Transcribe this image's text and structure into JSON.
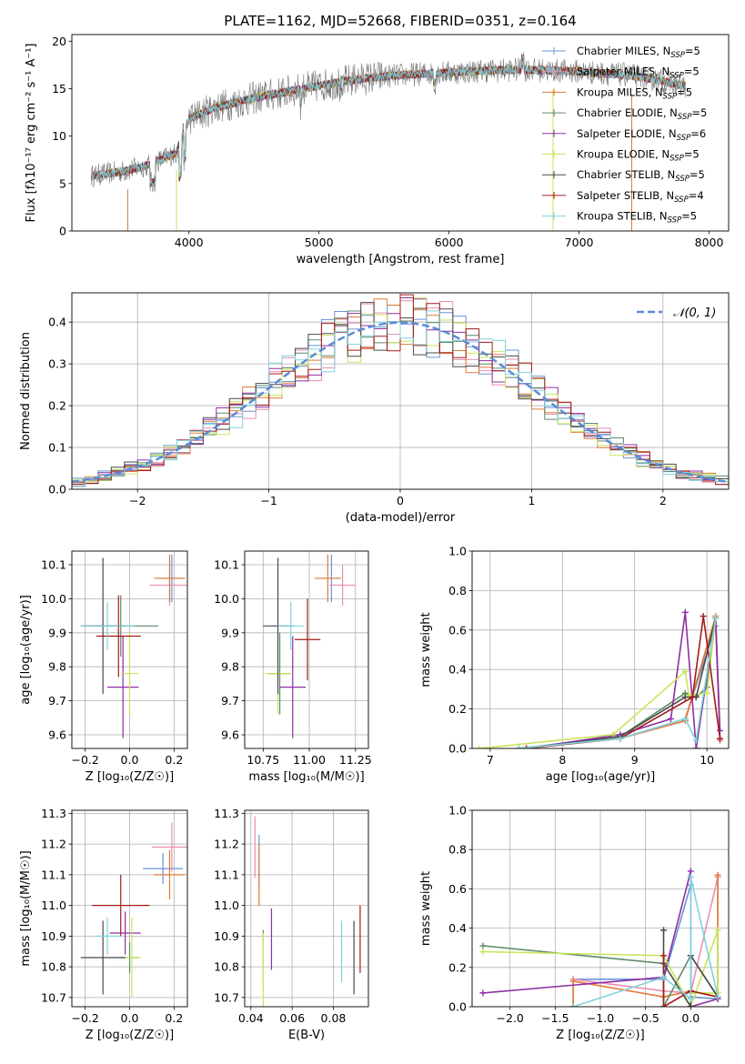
{
  "chart_data": [
    {
      "id": "spectrum",
      "type": "line",
      "title": "PLATE=1162, MJD=52668, FIBERID=0351, z=0.164",
      "xlabel": "wavelength [Angstrom, rest frame]",
      "ylabel": "Flux [fλ10⁻¹⁷ erg cm⁻² s⁻¹ A⁻¹]",
      "xlim": [
        3100,
        8150
      ],
      "ylim": [
        0,
        20.7
      ],
      "xticks": [
        4000,
        5000,
        6000,
        7000,
        8000
      ],
      "yticks": [
        0,
        5,
        10,
        15,
        20
      ],
      "grid": false,
      "legend_position": "right",
      "series": [
        {
          "name": "Chabrier MILES, N",
          "sub": "SSP",
          "suffix": "=5",
          "color": "#6a93d6"
        },
        {
          "name": "Salpeter MILES, N",
          "sub": "SSP",
          "suffix": "=5",
          "color": "#e98fb0"
        },
        {
          "name": "Kroupa MILES, N",
          "sub": "SSP",
          "suffix": "=5",
          "color": "#e07a36"
        },
        {
          "name": "Chabrier ELODIE, N",
          "sub": "SSP",
          "suffix": "=5",
          "color": "#5d8a6a"
        },
        {
          "name": "Salpeter ELODIE, N",
          "sub": "SSP",
          "suffix": "=6",
          "color": "#8e2fa3"
        },
        {
          "name": "Kroupa ELODIE, N",
          "sub": "SSP",
          "suffix": "=5",
          "color": "#c9e55a"
        },
        {
          "name": "Chabrier STELIB, N",
          "sub": "SSP",
          "suffix": "=5",
          "color": "#4a4a4a"
        },
        {
          "name": "Salpeter STELIB, N",
          "sub": "SSP",
          "suffix": "=4",
          "color": "#a41a1a"
        },
        {
          "name": "Kroupa STELIB, N",
          "sub": "SSP",
          "suffix": "=5",
          "color": "#7fd3dc"
        }
      ],
      "continuum": {
        "x": [
          3250,
          3500,
          3700,
          3900,
          4000,
          4200,
          4500,
          4800,
          5000,
          5300,
          5600,
          6000,
          6300,
          6600,
          7000,
          7400,
          7600,
          7800
        ],
        "y": [
          5.8,
          6.3,
          7.0,
          8.2,
          11.8,
          13.0,
          14.0,
          14.8,
          15.3,
          16.0,
          16.4,
          16.7,
          16.9,
          17.0,
          16.8,
          16.4,
          15.9,
          15.3
        ]
      },
      "data_series": {
        "name": "data",
        "color": "#7a7a7a"
      }
    },
    {
      "id": "residuals",
      "type": "line",
      "xlabel": "(data-model)/error",
      "ylabel": "Normed distribution",
      "xlim": [
        -2.5,
        2.5
      ],
      "ylim": [
        0,
        0.47
      ],
      "xticks": [
        -2,
        -1,
        0,
        1,
        2
      ],
      "yticks": [
        0.0,
        0.1,
        0.2,
        0.3,
        0.4
      ],
      "grid": true,
      "legend_position": "top-right",
      "reference": {
        "label": "𝒩(0, 1)",
        "mean": 0,
        "sigma": 1,
        "color": "#5b8bd6"
      },
      "histogram_bin_width": 0.1
    },
    {
      "id": "age-vs-Z",
      "type": "scatter",
      "xlabel": "Z [log₁₀(Z/Z☉)]",
      "ylabel": "age  [log₁₀(age/yr)]",
      "xlim": [
        -0.26,
        0.26
      ],
      "ylim": [
        9.56,
        10.14
      ],
      "xticks": [
        -0.2,
        0.0,
        0.2
      ],
      "yticks": [
        9.6,
        9.7,
        9.8,
        9.9,
        10.0,
        10.1
      ],
      "grid": true,
      "points": [
        {
          "x": 0.19,
          "y": 10.06,
          "xerr": 0.06,
          "yerr": 0.07,
          "color": "#6a93d6"
        },
        {
          "x": 0.18,
          "y": 10.04,
          "xerr": 0.09,
          "yerr": 0.06,
          "color": "#e98fb0"
        },
        {
          "x": 0.18,
          "y": 10.06,
          "xerr": 0.07,
          "yerr": 0.07,
          "color": "#e07a36"
        },
        {
          "x": -0.04,
          "y": 9.92,
          "xerr": 0.17,
          "yerr": 0.09,
          "color": "#5d8a6a"
        },
        {
          "x": -0.03,
          "y": 9.74,
          "xerr": 0.07,
          "yerr": 0.15,
          "color": "#8e2fa3"
        },
        {
          "x": 0.0,
          "y": 9.78,
          "xerr": 0.04,
          "yerr": 0.12,
          "color": "#c9e55a"
        },
        {
          "x": -0.12,
          "y": 9.92,
          "xerr": 0.1,
          "yerr": 0.2,
          "color": "#4a4a4a"
        },
        {
          "x": -0.05,
          "y": 9.89,
          "xerr": 0.1,
          "yerr": 0.12,
          "color": "#a41a1a"
        },
        {
          "x": -0.1,
          "y": 9.92,
          "xerr": 0.12,
          "yerr": 0.07,
          "color": "#7fd3dc"
        }
      ]
    },
    {
      "id": "age-vs-mass",
      "type": "scatter",
      "xlabel": "mass [log₁₀(M/M☉)]",
      "ylabel": "",
      "xlim": [
        10.65,
        11.32
      ],
      "ylim": [
        9.56,
        10.14
      ],
      "xticks": [
        10.75,
        11.0,
        11.25
      ],
      "yticks": [
        9.6,
        9.7,
        9.8,
        9.9,
        10.0,
        10.1
      ],
      "grid": true,
      "points": [
        {
          "x": 11.12,
          "y": 10.06,
          "xerr": 0.05,
          "yerr": 0.07,
          "color": "#6a93d6"
        },
        {
          "x": 11.18,
          "y": 10.04,
          "xerr": 0.07,
          "yerr": 0.06,
          "color": "#e98fb0"
        },
        {
          "x": 11.1,
          "y": 10.06,
          "xerr": 0.07,
          "yerr": 0.07,
          "color": "#e07a36"
        },
        {
          "x": 10.84,
          "y": 9.78,
          "xerr": 0.06,
          "yerr": 0.12,
          "color": "#5d8a6a"
        },
        {
          "x": 10.91,
          "y": 9.74,
          "xerr": 0.07,
          "yerr": 0.15,
          "color": "#8e2fa3"
        },
        {
          "x": 10.83,
          "y": 9.78,
          "xerr": 0.07,
          "yerr": 0.12,
          "color": "#c9e55a"
        },
        {
          "x": 10.83,
          "y": 9.92,
          "xerr": 0.08,
          "yerr": 0.2,
          "color": "#4a4a4a"
        },
        {
          "x": 10.99,
          "y": 9.88,
          "xerr": 0.07,
          "yerr": 0.12,
          "color": "#a41a1a"
        },
        {
          "x": 10.9,
          "y": 9.92,
          "xerr": 0.07,
          "yerr": 0.07,
          "color": "#7fd3dc"
        }
      ]
    },
    {
      "id": "weight-vs-age",
      "type": "line",
      "xlabel": "age  [log₁₀(age/yr)]",
      "ylabel": "mass weight",
      "xlim": [
        6.75,
        10.3
      ],
      "ylim": [
        0,
        1
      ],
      "xticks": [
        7,
        8,
        9,
        10
      ],
      "yticks": [
        0.0,
        0.2,
        0.4,
        0.6,
        0.8,
        1.0
      ],
      "grid": true,
      "series": [
        {
          "color": "#6a93d6",
          "points": [
            [
              7.4,
              0.0
            ],
            [
              8.8,
              0.05
            ],
            [
              9.7,
              0.15
            ],
            [
              10.12,
              0.62
            ],
            [
              10.18,
              0.04
            ]
          ]
        },
        {
          "color": "#e98fb0",
          "points": [
            [
              7.4,
              0.0
            ],
            [
              8.8,
              0.05
            ],
            [
              9.7,
              0.15
            ],
            [
              10.12,
              0.66
            ],
            [
              10.18,
              0.04
            ]
          ]
        },
        {
          "color": "#e07a36",
          "points": [
            [
              7.4,
              0.0
            ],
            [
              8.8,
              0.05
            ],
            [
              9.7,
              0.14
            ],
            [
              10.12,
              0.67
            ],
            [
              10.18,
              0.05
            ]
          ]
        },
        {
          "color": "#5d8a6a",
          "points": [
            [
              7.4,
              0.0
            ],
            [
              8.8,
              0.06
            ],
            [
              9.7,
              0.28
            ],
            [
              9.85,
              0.26
            ],
            [
              10.0,
              0.31
            ],
            [
              10.12,
              0.66
            ]
          ]
        },
        {
          "color": "#8e2fa3",
          "points": [
            [
              7.5,
              0.0
            ],
            [
              8.8,
              0.07
            ],
            [
              9.5,
              0.15
            ],
            [
              9.7,
              0.69
            ],
            [
              9.85,
              0.0
            ],
            [
              10.12,
              0.66
            ],
            [
              10.18,
              0.09
            ]
          ]
        },
        {
          "color": "#c9e55a",
          "points": [
            [
              6.85,
              0.0
            ],
            [
              8.7,
              0.07
            ],
            [
              9.7,
              0.39
            ],
            [
              9.75,
              0.27
            ],
            [
              10.0,
              0.28
            ],
            [
              10.12,
              0.66
            ]
          ]
        },
        {
          "color": "#4a4a4a",
          "points": [
            [
              7.5,
              0.0
            ],
            [
              8.8,
              0.06
            ],
            [
              9.7,
              0.26
            ],
            [
              9.85,
              0.26
            ],
            [
              10.12,
              0.66
            ]
          ]
        },
        {
          "color": "#a41a1a",
          "points": [
            [
              7.5,
              0.0
            ],
            [
              8.8,
              0.05
            ],
            [
              9.8,
              0.26
            ],
            [
              9.95,
              0.67
            ],
            [
              10.18,
              0.05
            ]
          ]
        },
        {
          "color": "#7fd3dc",
          "points": [
            [
              7.4,
              0.0
            ],
            [
              8.8,
              0.05
            ],
            [
              9.7,
              0.15
            ],
            [
              9.85,
              0.04
            ],
            [
              10.12,
              0.66
            ]
          ]
        }
      ]
    },
    {
      "id": "mass-vs-Z",
      "type": "scatter",
      "xlabel": "Z [log₁₀(Z/Z☉)]",
      "ylabel": "mass [log₁₀(M/M☉)]",
      "xlim": [
        -0.26,
        0.26
      ],
      "ylim": [
        10.67,
        11.31
      ],
      "xticks": [
        -0.2,
        0.0,
        0.2
      ],
      "yticks": [
        10.7,
        10.8,
        10.9,
        11.0,
        11.1,
        11.2,
        11.3
      ],
      "grid": true,
      "points": [
        {
          "x": 0.15,
          "y": 11.12,
          "xerr": 0.09,
          "yerr": 0.05,
          "color": "#6a93d6"
        },
        {
          "x": 0.19,
          "y": 11.19,
          "xerr": 0.09,
          "yerr": 0.08,
          "color": "#e98fb0"
        },
        {
          "x": 0.18,
          "y": 11.1,
          "xerr": 0.07,
          "yerr": 0.08,
          "color": "#e07a36"
        },
        {
          "x": 0.0,
          "y": 10.83,
          "xerr": 0.04,
          "yerr": 0.05,
          "color": "#5d8a6a"
        },
        {
          "x": -0.02,
          "y": 10.91,
          "xerr": 0.07,
          "yerr": 0.07,
          "color": "#8e2fa3"
        },
        {
          "x": 0.01,
          "y": 10.83,
          "xerr": 0.04,
          "yerr": 0.13,
          "color": "#c9e55a"
        },
        {
          "x": -0.12,
          "y": 10.83,
          "xerr": 0.1,
          "yerr": 0.12,
          "color": "#4a4a4a"
        },
        {
          "x": -0.04,
          "y": 11.0,
          "xerr": 0.13,
          "yerr": 0.1,
          "color": "#a41a1a"
        },
        {
          "x": -0.1,
          "y": 10.9,
          "xerr": 0.06,
          "yerr": 0.06,
          "color": "#7fd3dc"
        }
      ]
    },
    {
      "id": "mass-vs-EBV",
      "type": "scatter",
      "xlabel": "E(B-V)",
      "ylabel": "",
      "xlim": [
        0.037,
        0.097
      ],
      "ylim": [
        10.67,
        11.31
      ],
      "xticks": [
        0.04,
        0.06,
        0.08
      ],
      "yticks": [
        10.7,
        10.8,
        10.9,
        11.0,
        11.1,
        11.2,
        11.3
      ],
      "grid": true,
      "points": [
        {
          "x": 0.044,
          "y": 11.14,
          "xerr": 0.0,
          "yerr": 0.09,
          "color": "#6a93d6"
        },
        {
          "x": 0.042,
          "y": 11.19,
          "xerr": 0.0,
          "yerr": 0.1,
          "color": "#e98fb0"
        },
        {
          "x": 0.044,
          "y": 11.1,
          "xerr": 0.0,
          "yerr": 0.1,
          "color": "#e07a36"
        },
        {
          "x": 0.046,
          "y": 10.83,
          "xerr": 0.0,
          "yerr": 0.09,
          "color": "#5d8a6a"
        },
        {
          "x": 0.05,
          "y": 10.89,
          "xerr": 0.0,
          "yerr": 0.1,
          "color": "#8e2fa3"
        },
        {
          "x": 0.046,
          "y": 10.79,
          "xerr": 0.0,
          "yerr": 0.12,
          "color": "#c9e55a"
        },
        {
          "x": 0.09,
          "y": 10.83,
          "xerr": 0.0,
          "yerr": 0.12,
          "color": "#4a4a4a"
        },
        {
          "x": 0.093,
          "y": 10.89,
          "xerr": 0.0,
          "yerr": 0.11,
          "color": "#a41a1a"
        },
        {
          "x": 0.084,
          "y": 10.85,
          "xerr": 0.0,
          "yerr": 0.1,
          "color": "#7fd3dc"
        }
      ]
    },
    {
      "id": "weight-vs-Z",
      "type": "line",
      "xlabel": "Z [log₁₀(Z/Z☉)]",
      "ylabel": "mass weight",
      "xlim": [
        -2.42,
        0.42
      ],
      "ylim": [
        0,
        1
      ],
      "xticks": [
        -2.0,
        -1.5,
        -1.0,
        -0.5,
        0.0
      ],
      "yticks": [
        0.0,
        0.2,
        0.4,
        0.6,
        0.8,
        1.0
      ],
      "grid": true,
      "series": [
        {
          "color": "#6a93d6",
          "points": [
            [
              -1.3,
              0.0
            ],
            [
              -1.3,
              0.14
            ],
            [
              -0.3,
              0.14
            ],
            [
              0.0,
              0.62
            ],
            [
              0.0,
              0.05
            ],
            [
              0.3,
              0.04
            ]
          ]
        },
        {
          "color": "#e98fb0",
          "points": [
            [
              -1.3,
              0.0
            ],
            [
              -1.3,
              0.14
            ],
            [
              -0.3,
              0.08
            ],
            [
              0.0,
              0.07
            ],
            [
              0.3,
              0.66
            ],
            [
              0.3,
              0.05
            ]
          ]
        },
        {
          "color": "#e07a36",
          "points": [
            [
              -1.3,
              0.0
            ],
            [
              -1.3,
              0.13
            ],
            [
              -0.3,
              0.05
            ],
            [
              0.0,
              0.08
            ],
            [
              0.3,
              0.05
            ],
            [
              0.3,
              0.67
            ],
            [
              0.3,
              0.04
            ]
          ]
        },
        {
          "color": "#5d8a6a",
          "points": [
            [
              -2.3,
              0.31
            ],
            [
              -0.3,
              0.22
            ],
            [
              -0.3,
              0.0
            ],
            [
              0.0,
              0.26
            ],
            [
              0.3,
              0.05
            ]
          ]
        },
        {
          "color": "#8e2fa3",
          "points": [
            [
              -2.3,
              0.07
            ],
            [
              -0.3,
              0.15
            ],
            [
              0.0,
              0.69
            ],
            [
              0.0,
              0.0
            ],
            [
              0.3,
              0.04
            ]
          ]
        },
        {
          "color": "#c9e55a",
          "points": [
            [
              -2.3,
              0.28
            ],
            [
              -0.3,
              0.26
            ],
            [
              0.0,
              0.0
            ],
            [
              0.3,
              0.39
            ],
            [
              0.3,
              0.07
            ],
            [
              0.0,
              0.07
            ]
          ]
        },
        {
          "color": "#4a4a4a",
          "points": [
            [
              -0.3,
              0.39
            ],
            [
              -0.3,
              0.22
            ],
            [
              0.0,
              0.0
            ],
            [
              0.0,
              0.26
            ],
            [
              0.3,
              0.05
            ]
          ]
        },
        {
          "color": "#a41a1a",
          "points": [
            [
              -0.3,
              0.26
            ],
            [
              -0.3,
              0.0
            ],
            [
              0.0,
              0.08
            ],
            [
              0.3,
              0.05
            ]
          ]
        },
        {
          "color": "#7fd3dc",
          "points": [
            [
              -1.3,
              0.0
            ],
            [
              -0.3,
              0.15
            ],
            [
              0.0,
              0.04
            ],
            [
              0.0,
              0.66
            ],
            [
              0.3,
              0.05
            ]
          ]
        }
      ]
    }
  ]
}
